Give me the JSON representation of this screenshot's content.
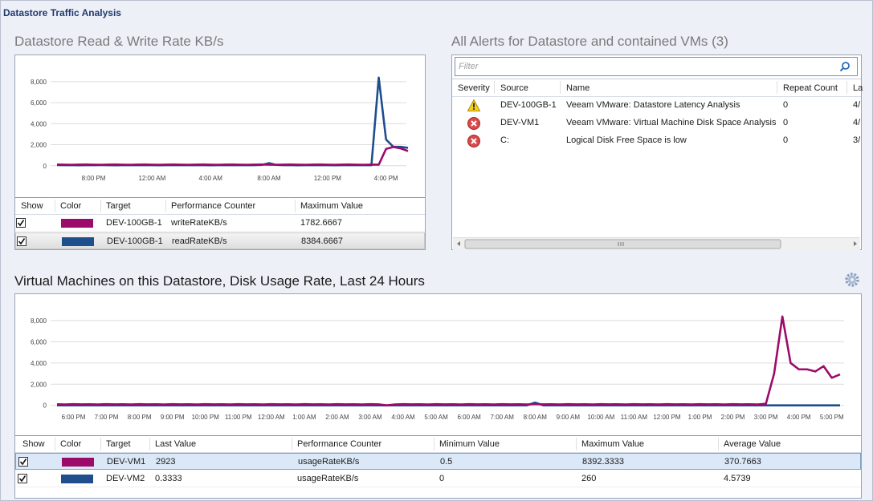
{
  "header": {
    "title": "Datastore Traffic Analysis"
  },
  "chart_data": [
    {
      "type": "line",
      "title": "Datastore Read & Write Rate KB/s",
      "categories": [
        null,
        null,
        null,
        null,
        null,
        "8:00 PM",
        null,
        null,
        null,
        null,
        null,
        null,
        null,
        "12:00 AM",
        null,
        null,
        null,
        null,
        null,
        null,
        null,
        "4:00 AM",
        null,
        null,
        null,
        null,
        null,
        null,
        null,
        "8:00 AM",
        null,
        null,
        null,
        null,
        null,
        null,
        null,
        "12:00 PM",
        null,
        null,
        null,
        null,
        null,
        null,
        null,
        "4:00 PM",
        null,
        null,
        null
      ],
      "series": [
        {
          "name": "writeRateKB/s",
          "target": "DEV-100GB-1",
          "show": true,
          "color": "#9c0a6a",
          "max_value": 1782.6667,
          "values": [
            120,
            100,
            90,
            110,
            120,
            100,
            90,
            110,
            120,
            100,
            90,
            110,
            120,
            100,
            90,
            110,
            120,
            100,
            90,
            110,
            120,
            100,
            90,
            110,
            120,
            100,
            90,
            110,
            120,
            100,
            90,
            110,
            120,
            100,
            90,
            110,
            120,
            100,
            90,
            110,
            120,
            100,
            90,
            110,
            100,
            1600,
            1782.6667,
            1650,
            1400
          ]
        },
        {
          "name": "readRateKB/s",
          "target": "DEV-100GB-1",
          "show": true,
          "color": "#1f4e8c",
          "max_value": 8384.6667,
          "values": [
            60,
            50,
            50,
            40,
            50,
            50,
            60,
            50,
            40,
            50,
            50,
            50,
            60,
            50,
            40,
            50,
            50,
            50,
            60,
            50,
            50,
            40,
            50,
            50,
            60,
            50,
            50,
            50,
            80,
            250,
            80,
            50,
            50,
            40,
            50,
            60,
            50,
            50,
            40,
            50,
            50,
            60,
            50,
            50,
            8384.6667,
            2500,
            1800,
            1800,
            1700
          ]
        }
      ],
      "legend_columns": [
        "Show",
        "Color",
        "Target",
        "Performance Counter",
        "Maximum Value"
      ],
      "ylim": [
        -400,
        8600
      ],
      "yticks": [
        0,
        {
          "value": 2000,
          "label": "2,000"
        },
        {
          "value": 4000,
          "label": "4,000"
        },
        {
          "value": 6000,
          "label": "6,000"
        },
        {
          "value": 8000,
          "label": "8,000"
        }
      ],
      "grid": true
    },
    {
      "type": "line",
      "title": "Virtual Machines on this Datastore, Disk Usage Rate, Last 24 Hours",
      "categories": [
        null,
        null,
        "6:00 PM",
        null,
        null,
        null,
        "7:00 PM",
        null,
        null,
        null,
        "8:00 PM",
        null,
        null,
        null,
        "9:00 PM",
        null,
        null,
        null,
        "10:00 PM",
        null,
        null,
        null,
        "11:00 PM",
        null,
        null,
        null,
        "12:00 AM",
        null,
        null,
        null,
        "1:00 AM",
        null,
        null,
        null,
        "2:00 AM",
        null,
        null,
        null,
        "3:00 AM",
        null,
        null,
        null,
        "4:00 AM",
        null,
        null,
        null,
        "5:00 AM",
        null,
        null,
        null,
        "6:00 AM",
        null,
        null,
        null,
        "7:00 AM",
        null,
        null,
        null,
        "8:00 AM",
        null,
        null,
        null,
        "9:00 AM",
        null,
        null,
        null,
        "10:00 AM",
        null,
        null,
        null,
        "11:00 AM",
        null,
        null,
        null,
        "12:00 PM",
        null,
        null,
        null,
        "1:00 PM",
        null,
        null,
        null,
        "2:00 PM",
        null,
        null,
        null,
        "3:00 PM",
        null,
        null,
        null,
        "4:00 PM",
        null,
        null,
        null,
        "5:00 PM",
        null
      ],
      "series": [
        {
          "name": "DEV-VM1",
          "counter": "usageRateKB/s",
          "show": true,
          "color": "#9c0a6a",
          "last_value": 2923,
          "min_value": 0.5,
          "max_value": 8392.3333,
          "average_value": 370.7663,
          "values": [
            110,
            90,
            120,
            100,
            110,
            90,
            120,
            100,
            110,
            90,
            120,
            100,
            110,
            90,
            120,
            100,
            110,
            90,
            120,
            100,
            110,
            90,
            120,
            100,
            110,
            90,
            120,
            100,
            110,
            90,
            120,
            100,
            110,
            90,
            120,
            100,
            110,
            90,
            120,
            100,
            0.5,
            90,
            120,
            100,
            110,
            90,
            120,
            100,
            110,
            90,
            120,
            100,
            110,
            90,
            120,
            100,
            110,
            90,
            120,
            100,
            110,
            90,
            120,
            100,
            110,
            90,
            120,
            100,
            110,
            90,
            120,
            100,
            110,
            90,
            120,
            100,
            110,
            90,
            120,
            100,
            110,
            90,
            120,
            100,
            110,
            90,
            150,
            3000,
            8392.3333,
            4000,
            3400,
            3400,
            3200,
            3700,
            2600,
            2923
          ]
        },
        {
          "name": "DEV-VM2",
          "counter": "usageRateKB/s",
          "show": true,
          "color": "#1f4e8c",
          "last_value": 0.3333,
          "min_value": 0,
          "max_value": 260,
          "average_value": 4.5739,
          "values": [
            0,
            5,
            3,
            2,
            0,
            5,
            3,
            2,
            0,
            5,
            3,
            2,
            0,
            5,
            3,
            2,
            0,
            5,
            3,
            2,
            0,
            5,
            3,
            2,
            0,
            5,
            3,
            2,
            0,
            5,
            3,
            2,
            0,
            5,
            3,
            2,
            0,
            5,
            3,
            2,
            0,
            5,
            3,
            2,
            0,
            5,
            3,
            2,
            0,
            5,
            3,
            2,
            0,
            5,
            3,
            2,
            2,
            3,
            260,
            4,
            0,
            5,
            3,
            2,
            0,
            5,
            3,
            2,
            0,
            5,
            3,
            2,
            0,
            5,
            3,
            2,
            0,
            5,
            3,
            2,
            0,
            5,
            3,
            2,
            0,
            5,
            3,
            2,
            0,
            5,
            3,
            2,
            2,
            1,
            0,
            0.3333
          ]
        }
      ],
      "legend_columns": [
        "Show",
        "Color",
        "Target",
        "Last Value",
        "Performance Counter",
        "Minimum Value",
        "Maximum Value",
        "Average Value"
      ],
      "ylim": [
        -400,
        8600
      ],
      "yticks": [
        0,
        {
          "value": 2000,
          "label": "2,000"
        },
        {
          "value": 4000,
          "label": "4,000"
        },
        {
          "value": 6000,
          "label": "6,000"
        },
        {
          "value": 8000,
          "label": "8,000"
        }
      ],
      "grid": true
    }
  ],
  "alerts": {
    "title": "All Alerts for Datastore and contained VMs (3)",
    "filter_placeholder": "Filter",
    "columns": [
      "Severity",
      "Source",
      "Name",
      "Repeat Count",
      "La"
    ],
    "rows": [
      {
        "severity": "warning",
        "source": "DEV-100GB-1",
        "name": "Veeam VMware: Datastore Latency Analysis",
        "repeat_count": 0,
        "last": "4/"
      },
      {
        "severity": "error",
        "source": "DEV-VM1",
        "name": "Veeam VMware: Virtual Machine Disk Space Analysis",
        "repeat_count": 0,
        "last": "4/"
      },
      {
        "severity": "error",
        "source": "C:",
        "name": "Logical Disk Free Space is low",
        "repeat_count": 0,
        "last": "3/"
      }
    ]
  }
}
